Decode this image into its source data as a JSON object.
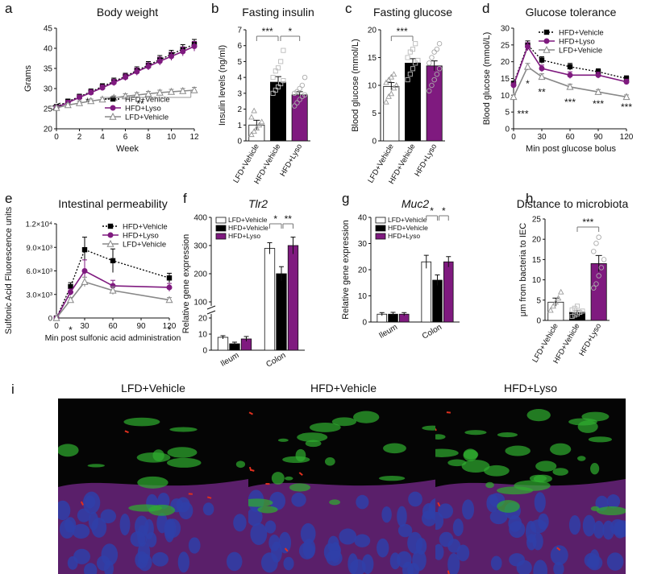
{
  "chart_data": [
    {
      "panel": "a",
      "type": "line",
      "title": "Body weight",
      "xlabel": "Week",
      "ylabel": "Grams",
      "xlim": [
        0,
        12
      ],
      "ylim": [
        20,
        45
      ],
      "xticks": [
        "0",
        "2",
        "4",
        "6",
        "8",
        "10",
        "12"
      ],
      "yticks": [
        "20",
        "25",
        "30",
        "35",
        "40",
        "45"
      ],
      "axis_break": true,
      "legend": "bottom-right",
      "series": [
        {
          "name": "HFD+Vehicle",
          "color": "#000000",
          "marker": "square",
          "dash": "dot",
          "x": [
            0,
            1,
            2,
            3,
            4,
            5,
            6,
            7,
            8,
            9,
            10,
            11,
            12
          ],
          "values": [
            25.5,
            26.8,
            28.0,
            29.2,
            30.5,
            31.8,
            33.0,
            34.5,
            35.8,
            37.2,
            38.5,
            39.8,
            41.0
          ],
          "err": [
            0.5,
            0.6,
            0.6,
            0.7,
            0.7,
            0.8,
            0.8,
            0.9,
            0.9,
            1.0,
            1.0,
            1.1,
            1.2
          ]
        },
        {
          "name": "HFD+Lyso",
          "color": "#7f1a7f",
          "marker": "circle",
          "dash": "solid",
          "x": [
            0,
            1,
            2,
            3,
            4,
            5,
            6,
            7,
            8,
            9,
            10,
            11,
            12
          ],
          "values": [
            25.3,
            26.5,
            27.8,
            29.0,
            30.2,
            31.5,
            32.8,
            34.2,
            35.5,
            36.8,
            38.0,
            39.2,
            40.5
          ],
          "err": [
            0.5,
            0.6,
            0.6,
            0.7,
            0.7,
            0.8,
            0.8,
            0.9,
            0.9,
            1.0,
            1.0,
            1.1,
            1.2
          ]
        },
        {
          "name": "LFD+Vehicle",
          "color": "#888888",
          "marker": "triangle",
          "dash": "solid",
          "x": [
            0,
            1,
            2,
            3,
            4,
            5,
            6,
            7,
            8,
            9,
            10,
            11,
            12
          ],
          "values": [
            25.2,
            25.9,
            26.4,
            26.9,
            27.3,
            27.7,
            28.1,
            28.4,
            28.7,
            29.0,
            29.2,
            29.4,
            29.6
          ],
          "err": [
            0.4,
            0.4,
            0.5,
            0.5,
            0.5,
            0.5,
            0.6,
            0.6,
            0.6,
            0.6,
            0.6,
            0.6,
            0.7
          ]
        }
      ],
      "annotations": [
        "*",
        "**"
      ]
    },
    {
      "panel": "b",
      "type": "bar",
      "title": "Fasting insulin",
      "ylabel": "Insulin levels (ng/ml)",
      "ylim": [
        0,
        7
      ],
      "yticks": [
        "0",
        "1",
        "2",
        "3",
        "4",
        "5",
        "6",
        "7"
      ],
      "categories": [
        "LFD+Vehicle",
        "HFD+Vehicle",
        "HFD+Lyso"
      ],
      "values": [
        1.0,
        3.7,
        2.9
      ],
      "err": [
        0.3,
        0.35,
        0.2
      ],
      "colors": [
        "#ffffff",
        "#000000",
        "#7f1a7f"
      ],
      "points": [
        [
          0.4,
          0.6,
          0.8,
          1.0,
          1.2,
          1.5,
          1.9
        ],
        [
          3.0,
          3.2,
          3.4,
          3.6,
          3.8,
          4.0,
          4.4,
          4.6,
          5.0,
          5.7
        ],
        [
          2.2,
          2.4,
          2.6,
          2.8,
          2.9,
          3.0,
          3.1,
          3.3,
          3.5,
          4.0
        ]
      ],
      "annotations": [
        "***",
        "*"
      ]
    },
    {
      "panel": "c",
      "type": "bar",
      "title": "Fasting glucose",
      "ylabel": "Blood glucose (mmol/L)",
      "ylim": [
        0,
        20
      ],
      "yticks": [
        "0",
        "5",
        "10",
        "15",
        "20"
      ],
      "categories": [
        "LFD+Vehicle",
        "HFD+Vehicle",
        "HFD+Lyso"
      ],
      "values": [
        9.8,
        14.0,
        13.5
      ],
      "err": [
        0.7,
        0.8,
        0.9
      ],
      "colors": [
        "#ffffff",
        "#000000",
        "#7f1a7f"
      ],
      "points": [
        [
          7.0,
          8.0,
          8.5,
          9.5,
          10,
          10.5,
          11,
          11.5,
          12
        ],
        [
          11,
          12,
          13,
          14,
          14.5,
          15,
          16,
          16.5,
          17.5
        ],
        [
          9,
          10,
          11,
          12,
          13,
          14,
          15,
          16,
          16.5,
          17.5
        ]
      ],
      "annotations": [
        "***"
      ]
    },
    {
      "panel": "d",
      "type": "line",
      "title": "Glucose tolerance",
      "xlabel": "Min post glucose bolus",
      "ylabel": "Blood glucose (mmol/L)",
      "xlim": [
        0,
        120
      ],
      "ylim": [
        0,
        30
      ],
      "xticks": [
        "0",
        "30",
        "60",
        "90",
        "120"
      ],
      "yticks": [
        "0",
        "5",
        "10",
        "15",
        "20",
        "25",
        "30"
      ],
      "legend": "top-right",
      "series": [
        {
          "name": "HFD+Vehicle",
          "color": "#000000",
          "marker": "square",
          "dash": "dot",
          "x": [
            0,
            15,
            30,
            60,
            90,
            120
          ],
          "values": [
            13.5,
            25.0,
            20.5,
            18.5,
            17.0,
            15.0
          ],
          "err": [
            0.7,
            1.2,
            1.0,
            1.0,
            0.9,
            0.8
          ]
        },
        {
          "name": "HFD+Lyso",
          "color": "#7f1a7f",
          "marker": "circle",
          "dash": "solid",
          "x": [
            0,
            15,
            30,
            60,
            90,
            120
          ],
          "values": [
            13.0,
            24.5,
            18.0,
            16.0,
            16.0,
            14.0
          ],
          "err": [
            0.7,
            1.2,
            1.0,
            1.0,
            0.9,
            0.8
          ]
        },
        {
          "name": "LFD+Vehicle",
          "color": "#888888",
          "marker": "triangle",
          "dash": "solid",
          "x": [
            0,
            15,
            30,
            60,
            90,
            120
          ],
          "values": [
            9.5,
            18.5,
            15.5,
            12.5,
            11.0,
            9.5
          ],
          "err": [
            0.6,
            1.0,
            0.9,
            0.8,
            0.7,
            0.6
          ]
        }
      ],
      "annotations": [
        "***",
        "*",
        "**",
        "***",
        "***",
        "***"
      ]
    },
    {
      "panel": "e",
      "type": "line",
      "title": "Intestinal permeability",
      "xlabel": "Min post sulfonic acid administration",
      "ylabel": "Sulfonic Acid Fluorescence units",
      "xlim": [
        0,
        120
      ],
      "ylim": [
        0,
        12000
      ],
      "xticks": [
        "0",
        "30",
        "60",
        "90",
        "120"
      ],
      "yticks": [
        "0",
        "3.0×10³",
        "6.0×10³",
        "9.0×10³",
        "1.2×10⁴"
      ],
      "legend": "top-right",
      "series": [
        {
          "name": "HFD+Vehicle",
          "color": "#000000",
          "marker": "square",
          "dash": "dot",
          "x": [
            0,
            15,
            30,
            60,
            120
          ],
          "values": [
            0,
            4000,
            8700,
            7300,
            5100
          ],
          "err": [
            0,
            500,
            1600,
            1500,
            600
          ]
        },
        {
          "name": "HFD+Lyso",
          "color": "#7f1a7f",
          "marker": "circle",
          "dash": "solid",
          "x": [
            0,
            15,
            30,
            60,
            120
          ],
          "values": [
            0,
            3300,
            6000,
            4100,
            3900
          ],
          "err": [
            0,
            400,
            1400,
            700,
            500
          ]
        },
        {
          "name": "LFD+Vehicle",
          "color": "#888888",
          "marker": "triangle",
          "dash": "solid",
          "x": [
            0,
            15,
            30,
            60,
            120
          ],
          "values": [
            0,
            2300,
            4600,
            3500,
            2300
          ],
          "err": [
            0,
            300,
            600,
            500,
            300
          ]
        }
      ],
      "annotations": [
        "*",
        "*"
      ]
    },
    {
      "panel": "f",
      "type": "bar",
      "title": "Tlr2",
      "ylabel": "Relative gene expression",
      "yticks": [
        "0",
        "10",
        "20",
        "100",
        "200",
        "300",
        "400"
      ],
      "axis_break": true,
      "groups": [
        "Ileum",
        "Colon"
      ],
      "series": [
        {
          "name": "LFD+Vehicle",
          "color": "#ffffff",
          "values": [
            8,
            290
          ],
          "err": [
            1,
            20
          ]
        },
        {
          "name": "HFD+Vehicle",
          "color": "#000000",
          "values": [
            4,
            200
          ],
          "err": [
            1,
            25
          ]
        },
        {
          "name": "HFD+Lyso",
          "color": "#7f1a7f",
          "values": [
            7,
            300
          ],
          "err": [
            1.5,
            30
          ]
        }
      ],
      "legend": "top-left",
      "annotations": [
        "*",
        "**"
      ]
    },
    {
      "panel": "g",
      "type": "bar",
      "title": "Muc2",
      "ylabel": "Relative gene expression",
      "ylim": [
        0,
        40
      ],
      "yticks": [
        "0",
        "10",
        "20",
        "30",
        "40"
      ],
      "groups": [
        "Ileum",
        "Colon"
      ],
      "series": [
        {
          "name": "LFD+Vehicle",
          "color": "#ffffff",
          "values": [
            3,
            23
          ],
          "err": [
            0.6,
            2.5
          ]
        },
        {
          "name": "HFD+Vehicle",
          "color": "#000000",
          "values": [
            3,
            16
          ],
          "err": [
            0.7,
            2
          ]
        },
        {
          "name": "HFD+Lyso",
          "color": "#7f1a7f",
          "values": [
            3,
            23
          ],
          "err": [
            0.6,
            2
          ]
        }
      ],
      "legend": "top-left",
      "annotations": [
        "*",
        "*"
      ]
    },
    {
      "panel": "h",
      "type": "bar",
      "title": "Distance to microbiota",
      "ylabel": "μm from bacteria to IEC",
      "ylim": [
        0,
        25
      ],
      "yticks": [
        "0",
        "5",
        "10",
        "15",
        "20",
        "25"
      ],
      "categories": [
        "LFD+Vehicle",
        "HFD+Vehicle",
        "HFD+Lyso"
      ],
      "values": [
        4.5,
        2.0,
        14.0
      ],
      "err": [
        1.0,
        0.5,
        2.0
      ],
      "colors": [
        "#ffffff",
        "#000000",
        "#7f1a7f"
      ],
      "points": [
        [
          2.5,
          3.5,
          4.5,
          5.5,
          7.0
        ],
        [
          1.0,
          1.3,
          1.6,
          2.0,
          2.3,
          2.6,
          3.0,
          3.5
        ],
        [
          8,
          9,
          11,
          13,
          15,
          17,
          19,
          20.5
        ]
      ],
      "annotations": [
        "***"
      ]
    }
  ],
  "panel_letters": [
    "a",
    "b",
    "c",
    "d",
    "e",
    "f",
    "g",
    "h",
    "i"
  ],
  "micrographs": {
    "titles": [
      "LFD+Vehicle",
      "HFD+Vehicle",
      "HFD+Lyso"
    ]
  }
}
